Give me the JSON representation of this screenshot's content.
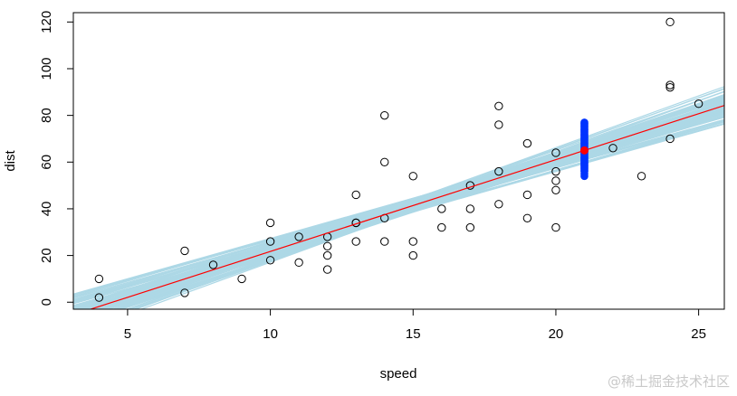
{
  "chart_data": {
    "type": "scatter",
    "xlabel": "speed",
    "ylabel": "dist",
    "xlim": [
      3.1,
      25.9
    ],
    "ylim": [
      -3,
      124
    ],
    "x_ticks": [
      5,
      10,
      15,
      20,
      25
    ],
    "y_ticks": [
      0,
      20,
      40,
      60,
      80,
      100,
      120
    ],
    "grid": false,
    "points": [
      [
        4,
        2
      ],
      [
        4,
        10
      ],
      [
        7,
        4
      ],
      [
        7,
        22
      ],
      [
        8,
        16
      ],
      [
        9,
        10
      ],
      [
        10,
        18
      ],
      [
        10,
        26
      ],
      [
        10,
        34
      ],
      [
        11,
        17
      ],
      [
        11,
        28
      ],
      [
        12,
        14
      ],
      [
        12,
        20
      ],
      [
        12,
        24
      ],
      [
        12,
        28
      ],
      [
        13,
        26
      ],
      [
        13,
        34
      ],
      [
        13,
        34
      ],
      [
        13,
        46
      ],
      [
        14,
        26
      ],
      [
        14,
        36
      ],
      [
        14,
        60
      ],
      [
        14,
        80
      ],
      [
        15,
        20
      ],
      [
        15,
        26
      ],
      [
        15,
        54
      ],
      [
        16,
        32
      ],
      [
        16,
        40
      ],
      [
        17,
        32
      ],
      [
        17,
        40
      ],
      [
        17,
        50
      ],
      [
        18,
        42
      ],
      [
        18,
        56
      ],
      [
        18,
        76
      ],
      [
        18,
        84
      ],
      [
        19,
        36
      ],
      [
        19,
        46
      ],
      [
        19,
        68
      ],
      [
        20,
        32
      ],
      [
        20,
        48
      ],
      [
        20,
        52
      ],
      [
        20,
        56
      ],
      [
        20,
        64
      ],
      [
        22,
        66
      ],
      [
        23,
        54
      ],
      [
        24,
        70
      ],
      [
        24,
        92
      ],
      [
        24,
        93
      ],
      [
        24,
        120
      ],
      [
        25,
        85
      ]
    ],
    "fit_line": {
      "intercept": -17.58,
      "slope": 3.932,
      "color": "#ff0000"
    },
    "bootstrap_lines": {
      "count": 100,
      "color": "#add8e6",
      "intercept_range": [
        -29,
        -6
      ],
      "slope_range": [
        3.35,
        4.5
      ]
    },
    "prediction": {
      "x": 21,
      "value": 65,
      "color": "#ff0000",
      "samples_color": "#0033ff",
      "samples": [
        54,
        55,
        56,
        56.5,
        57,
        57.5,
        58,
        58.5,
        59,
        59.5,
        60,
        60.5,
        61,
        61.5,
        62,
        62.5,
        63,
        63.5,
        64,
        64.5,
        65,
        65.5,
        66,
        66.5,
        67,
        67.5,
        68,
        68.5,
        69,
        69.5,
        70,
        70.5,
        71,
        71.5,
        72,
        72.5,
        73,
        73.5,
        74,
        74.5,
        75,
        75.5,
        76,
        76.5,
        77
      ]
    }
  },
  "watermark": "@稀土掘金技术社区"
}
